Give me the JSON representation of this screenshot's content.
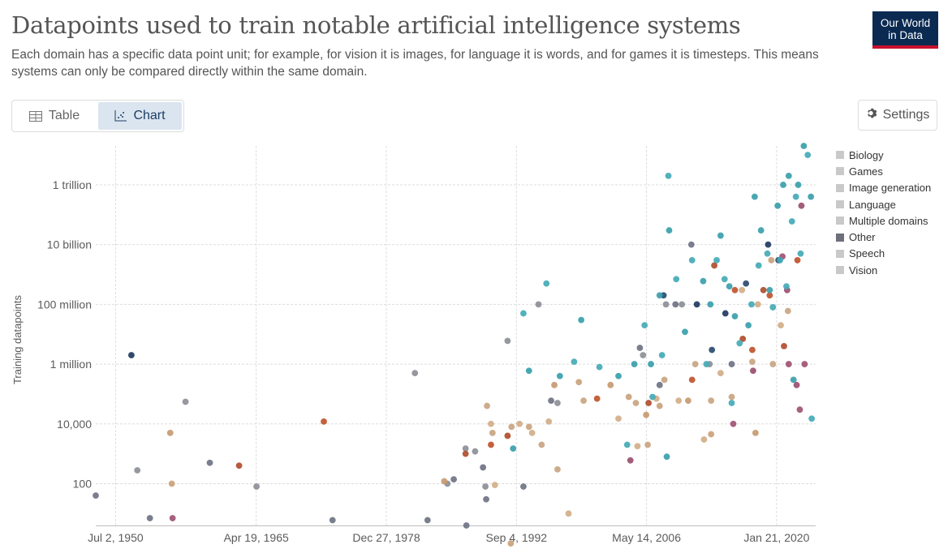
{
  "header": {
    "title": "Datapoints used to train notable artificial intelligence systems",
    "subtitle": "Each domain has a specific data point unit; for example, for vision it is images, for language it is words, and for games it is timesteps. This means systems can only be compared directly within the same domain.",
    "logo_line1": "Our World",
    "logo_line2": "in Data"
  },
  "tabs": {
    "table_label": "Table",
    "chart_label": "Chart"
  },
  "settings_label": "Settings",
  "colors": {
    "Biology": "#c9c9c9",
    "Games": "#c9c9c9",
    "Image generation": "#c9c9c9",
    "Language": "#c9c9c9",
    "Multiple domains": "#c9c9c9",
    "Other": "#6d6f7b",
    "Speech": "#c9c9c9",
    "Vision": "#c9c9c9"
  },
  "chart_data": {
    "type": "scatter",
    "ylabel": "Training datapoints",
    "yscale": "log",
    "ylim": [
      4,
      20000000000000
    ],
    "xlim": [
      "1948-06-01",
      "2024-03-01"
    ],
    "x_ticks": [
      {
        "date": "1950-07-02",
        "label": "Jul 2, 1950"
      },
      {
        "date": "1965-04-19",
        "label": "Apr 19, 1965"
      },
      {
        "date": "1978-12-27",
        "label": "Dec 27, 1978"
      },
      {
        "date": "1992-09-04",
        "label": "Sep 4, 1992"
      },
      {
        "date": "2006-05-14",
        "label": "May 14, 2006"
      },
      {
        "date": "2020-01-21",
        "label": "Jan 21, 2020"
      }
    ],
    "y_ticks": [
      {
        "value": 100,
        "label": "100"
      },
      {
        "value": 10000,
        "label": "10,000"
      },
      {
        "value": 1000000,
        "label": "1 million"
      },
      {
        "value": 100000000,
        "label": "100 million"
      },
      {
        "value": 10000000000,
        "label": "10 billion"
      },
      {
        "value": 1000000000000,
        "label": "1 trillion"
      }
    ],
    "grid": true,
    "legend_position": "right",
    "legend": [
      "Biology",
      "Games",
      "Image generation",
      "Language",
      "Multiple domains",
      "Other",
      "Speech",
      "Vision"
    ],
    "series": [
      {
        "name": "Other",
        "points": [
          [
            "1948-06-01",
            40
          ],
          [
            "1952-10-15",
            280
          ],
          [
            "1954-02-10",
            7
          ],
          [
            "1957-11-10",
            55000
          ],
          [
            "1960-06-01",
            500
          ],
          [
            "1965-05-01",
            80
          ],
          [
            "1973-05-01",
            6
          ],
          [
            "1982-01-01",
            500000
          ],
          [
            "1983-05-01",
            6
          ],
          [
            "1985-06-01",
            100
          ],
          [
            "1986-02-01",
            140
          ],
          [
            "1987-05-01",
            1500
          ],
          [
            "1987-06-01",
            4
          ],
          [
            "1988-05-01",
            1200
          ],
          [
            "1989-03-01",
            350
          ],
          [
            "1989-06-01",
            80
          ],
          [
            "1989-07-01",
            30
          ],
          [
            "1991-10-01",
            6000000
          ],
          [
            "1993-06-01",
            80
          ],
          [
            "1995-01-01",
            100000000
          ],
          [
            "1996-05-01",
            60000
          ],
          [
            "1997-01-01",
            50000
          ],
          [
            "2005-09-01",
            3500000
          ],
          [
            "2006-01-01",
            2000000
          ],
          [
            "2007-10-01",
            200000
          ],
          [
            "2008-06-01",
            100000000
          ],
          [
            "2009-06-01",
            100000000
          ],
          [
            "2010-02-01",
            100000000
          ],
          [
            "2011-02-01",
            10000000000
          ],
          [
            "2013-01-01",
            1000000
          ],
          [
            "2015-05-01",
            1000000
          ]
        ]
      },
      {
        "name": "Games",
        "points": [
          [
            "1956-04-01",
            5000
          ],
          [
            "1956-06-01",
            100
          ],
          [
            "1985-02-01",
            120
          ],
          [
            "1992-02-01",
            1
          ],
          [
            "1996-09-01",
            200000
          ],
          [
            "1999-04-01",
            250000
          ],
          [
            "2002-08-01",
            200000
          ],
          [
            "2004-07-01",
            80000
          ],
          [
            "2006-05-01",
            20000
          ],
          [
            "2007-10-01",
            40000
          ],
          [
            "2010-10-01",
            60000
          ],
          [
            "2013-03-01",
            4500
          ],
          [
            "2017-11-01",
            5000
          ],
          [
            "2019-07-01",
            3000000000
          ]
        ]
      },
      {
        "name": "Language",
        "points": [
          [
            "1989-08-01",
            40000
          ],
          [
            "1990-01-01",
            10000
          ],
          [
            "1990-03-01",
            5000
          ],
          [
            "1990-06-01",
            90
          ],
          [
            "1992-03-01",
            8000
          ],
          [
            "1993-01-01",
            10000
          ],
          [
            "1994-01-01",
            8000
          ],
          [
            "1994-05-01",
            5000
          ],
          [
            "1995-05-01",
            2000
          ],
          [
            "1996-02-01",
            12000
          ],
          [
            "1997-01-01",
            300
          ],
          [
            "1998-03-01",
            10
          ],
          [
            "1999-10-01",
            60000
          ],
          [
            "2003-06-01",
            15000
          ],
          [
            "2005-04-01",
            50000
          ],
          [
            "2005-06-01",
            1800
          ],
          [
            "2006-07-01",
            2000
          ],
          [
            "2007-06-01",
            70000
          ],
          [
            "2008-04-01",
            300000
          ],
          [
            "2009-10-01",
            60000
          ],
          [
            "2011-07-01",
            1000000
          ],
          [
            "2012-06-01",
            3000
          ],
          [
            "2013-03-01",
            60000
          ],
          [
            "2014-03-01",
            500000
          ],
          [
            "2015-05-01",
            80000
          ],
          [
            "2016-06-01",
            300000000
          ],
          [
            "2017-07-01",
            1200000
          ],
          [
            "2018-02-01",
            100000000
          ],
          [
            "2019-09-01",
            1000000
          ],
          [
            "2020-07-01",
            20000000
          ],
          [
            "2021-04-01",
            60000000
          ]
        ]
      },
      {
        "name": "Image generation",
        "points": [
          [
            "1956-07-01",
            7
          ],
          [
            "2004-09-01",
            600
          ],
          [
            "2015-07-01",
            10000
          ],
          [
            "2017-08-01",
            600000
          ],
          [
            "2020-09-01",
            4000000000
          ],
          [
            "2021-03-01",
            300000000
          ],
          [
            "2021-05-01",
            1000000
          ],
          [
            "2022-03-01",
            200000
          ],
          [
            "2022-07-01",
            30000
          ],
          [
            "2022-09-01",
            200000000000
          ],
          [
            "2023-01-01",
            1000000
          ]
        ]
      },
      {
        "name": "Speech",
        "points": [
          [
            "1963-07-01",
            400
          ],
          [
            "1972-06-01",
            12000
          ],
          [
            "1987-05-01",
            1000
          ],
          [
            "1990-01-01",
            2000
          ],
          [
            "1991-10-01",
            4000
          ],
          [
            "2001-03-01",
            70000
          ],
          [
            "2006-08-01",
            50000
          ],
          [
            "2011-03-01",
            300000
          ],
          [
            "2013-07-01",
            2000000000
          ],
          [
            "2015-09-01",
            300000000
          ],
          [
            "2016-07-01",
            7000000
          ],
          [
            "2017-07-01",
            3000000
          ],
          [
            "2018-09-01",
            300000000
          ],
          [
            "2019-05-01",
            200000000
          ],
          [
            "2020-11-01",
            4000000
          ],
          [
            "2022-04-01",
            3000000000
          ]
        ]
      },
      {
        "name": "Biology",
        "points": [
          [
            "1952-03-01",
            2000000
          ],
          [
            "2008-03-01",
            200000000
          ],
          [
            "2011-09-01",
            100000000
          ],
          [
            "2013-04-01",
            3000000
          ],
          [
            "2014-09-01",
            50000000
          ],
          [
            "2016-11-01",
            500000000
          ],
          [
            "2019-03-01",
            10000000000
          ],
          [
            "2020-04-01",
            3000000000
          ]
        ]
      },
      {
        "name": "Vision",
        "points": [
          [
            "1992-05-01",
            1500
          ],
          [
            "1993-06-01",
            50000000
          ],
          [
            "1994-01-01",
            600000
          ],
          [
            "1995-11-01",
            500000000
          ],
          [
            "1997-04-01",
            400000
          ],
          [
            "1998-10-01",
            1200000
          ],
          [
            "1999-07-01",
            30000000
          ],
          [
            "2001-06-01",
            800000
          ],
          [
            "2003-06-01",
            400000
          ],
          [
            "2004-05-01",
            2000
          ],
          [
            "2005-02-01",
            1000000
          ],
          [
            "2006-03-01",
            20000000
          ],
          [
            "2006-11-01",
            1000000
          ],
          [
            "2007-01-01",
            80000
          ],
          [
            "2007-10-01",
            200000000
          ],
          [
            "2008-01-01",
            2000000
          ],
          [
            "2008-07-01",
            800
          ],
          [
            "2008-09-01",
            2000000000000
          ],
          [
            "2008-10-01",
            30000000000
          ],
          [
            "2009-07-01",
            700000000
          ],
          [
            "2010-06-01",
            12000000
          ],
          [
            "2011-03-01",
            3000000000
          ],
          [
            "2012-05-01",
            600000000
          ],
          [
            "2012-09-01",
            1000000
          ],
          [
            "2013-02-01",
            100000000
          ],
          [
            "2013-10-01",
            3000000000
          ],
          [
            "2014-03-01",
            20000000000
          ],
          [
            "2014-08-01",
            700000000
          ],
          [
            "2015-02-01",
            400000000
          ],
          [
            "2015-05-01",
            50000
          ],
          [
            "2015-09-01",
            40000000
          ],
          [
            "2016-03-01",
            5000000
          ],
          [
            "2017-02-01",
            20000000
          ],
          [
            "2017-06-01",
            100000000
          ],
          [
            "2017-10-01",
            400000000000
          ],
          [
            "2018-03-01",
            2000000000
          ],
          [
            "2018-06-01",
            30000000000
          ],
          [
            "2019-02-01",
            5000000000
          ],
          [
            "2019-05-01",
            300000000
          ],
          [
            "2019-09-01",
            80000000
          ],
          [
            "2020-03-01",
            200000000000
          ],
          [
            "2020-06-01",
            3000000000
          ],
          [
            "2020-10-01",
            1000000000000
          ],
          [
            "2021-02-01",
            400000000
          ],
          [
            "2021-05-01",
            2000000000000
          ],
          [
            "2021-09-01",
            60000000000
          ],
          [
            "2021-11-01",
            300000
          ],
          [
            "2022-02-01",
            400000000000
          ],
          [
            "2022-05-01",
            1000000000000
          ],
          [
            "2022-08-01",
            5000000000
          ],
          [
            "2022-12-01",
            20000000000000
          ],
          [
            "2023-05-01",
            10000000000000
          ],
          [
            "2023-09-01",
            400000000000
          ],
          [
            "2023-10-01",
            15000
          ]
        ]
      }
    ]
  }
}
